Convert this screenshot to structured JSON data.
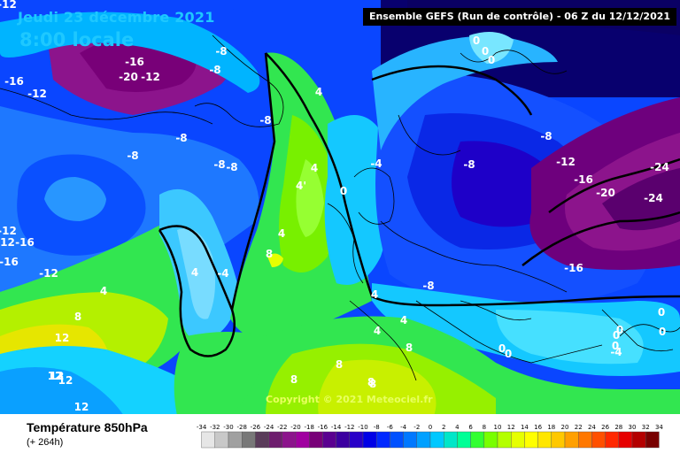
{
  "header": {
    "date": "Jeudi 23 décembre 2021",
    "time": "8:00 locale",
    "run_info": "Ensemble GEFS  (Run de contrôle)  -  06 Z du 12/12/2021"
  },
  "footer": {
    "field": "Température 850hPa",
    "lead": "(+ 264h)",
    "copyright": "Copyright © 2021 Meteociel.fr"
  },
  "scale": {
    "labels": [
      "-34",
      "-32",
      "-30",
      "-28",
      "-26",
      "-24",
      "-22",
      "-20",
      "-18",
      "-16",
      "-14",
      "-12",
      "-10",
      "-8",
      "-6",
      "-4",
      "-2",
      "0",
      "2",
      "4",
      "6",
      "8",
      "10",
      "12",
      "14",
      "16",
      "18",
      "20",
      "22",
      "24",
      "26",
      "28",
      "30",
      "32",
      "34"
    ],
    "colors": [
      "#e6e6e6",
      "#c8c8c8",
      "#a0a0a0",
      "#787878",
      "#5a3c5a",
      "#6e1e6e",
      "#8c148c",
      "#a000a0",
      "#780078",
      "#5a0090",
      "#3c00a0",
      "#2800c8",
      "#0000e6",
      "#0028ff",
      "#0050ff",
      "#0078ff",
      "#00a0ff",
      "#00c8ff",
      "#00e6c8",
      "#00ff96",
      "#32ff32",
      "#78ff00",
      "#b4ff00",
      "#e6ff00",
      "#ffff00",
      "#ffe600",
      "#ffc800",
      "#ffa000",
      "#ff7800",
      "#ff5000",
      "#ff2800",
      "#e60000",
      "#b40000",
      "#780000"
    ]
  },
  "map_labels": [
    {
      "text": "-12",
      "color": "white"
    },
    {
      "text": "-16",
      "color": "white"
    },
    {
      "text": "-20",
      "color": "white"
    },
    {
      "text": "-12",
      "color": "white"
    },
    {
      "text": "-16",
      "color": "white"
    },
    {
      "text": "-12",
      "color": "white"
    },
    {
      "text": "-8",
      "color": "white"
    },
    {
      "text": "-8",
      "color": "white"
    },
    {
      "text": "-8",
      "color": "white"
    },
    {
      "text": "-8",
      "color": "white"
    },
    {
      "text": "-8",
      "color": "white"
    },
    {
      "text": "-8",
      "color": "white"
    },
    {
      "text": "-8",
      "color": "white"
    },
    {
      "text": "-12",
      "color": "white"
    },
    {
      "text": "-16",
      "color": "white"
    },
    {
      "text": "-16",
      "color": "white"
    },
    {
      "text": "-12",
      "color": "white"
    },
    {
      "text": "-12",
      "color": "white"
    },
    {
      "text": "4",
      "color": "white"
    },
    {
      "text": "-4",
      "color": "white"
    },
    {
      "text": "4",
      "color": "white"
    },
    {
      "text": "8",
      "color": "white"
    },
    {
      "text": "12",
      "color": "white"
    },
    {
      "text": "12",
      "color": "white"
    },
    {
      "text": "12",
      "color": "white"
    },
    {
      "text": "12",
      "color": "white"
    },
    {
      "text": "4",
      "color": "white"
    },
    {
      "text": "4",
      "color": "white"
    },
    {
      "text": "4",
      "color": "white"
    },
    {
      "text": "4'",
      "color": "white"
    },
    {
      "text": "0",
      "color": "white"
    },
    {
      "text": "4",
      "color": "white"
    },
    {
      "text": "8",
      "color": "white"
    },
    {
      "text": "8",
      "color": "white"
    },
    {
      "text": "8",
      "color": "white"
    },
    {
      "text": "8",
      "color": "white"
    },
    {
      "text": "8",
      "color": "white"
    },
    {
      "text": "4",
      "color": "white"
    },
    {
      "text": "4",
      "color": "white"
    },
    {
      "text": "8",
      "color": "white"
    },
    {
      "text": "-4",
      "color": "white"
    },
    {
      "text": "-8",
      "color": "white"
    },
    {
      "text": "-8",
      "color": "white"
    },
    {
      "text": "-8",
      "color": "white"
    },
    {
      "text": "-12",
      "color": "white"
    },
    {
      "text": "-16",
      "color": "white"
    },
    {
      "text": "-20",
      "color": "white"
    },
    {
      "text": "-24",
      "color": "white"
    },
    {
      "text": "-24",
      "color": "white"
    },
    {
      "text": "-16",
      "color": "white"
    },
    {
      "text": "0",
      "color": "white"
    },
    {
      "text": "0",
      "color": "white"
    },
    {
      "text": "0",
      "color": "white"
    },
    {
      "text": "0",
      "color": "white"
    },
    {
      "text": "0",
      "color": "white"
    },
    {
      "text": "0",
      "color": "white"
    },
    {
      "text": "0",
      "color": "white"
    },
    {
      "text": "0",
      "color": "white"
    },
    {
      "text": "-4",
      "color": "white"
    },
    {
      "text": "0",
      "color": "white"
    },
    {
      "text": "0",
      "color": "white"
    },
    {
      "text": "12",
      "color": "white"
    }
  ]
}
